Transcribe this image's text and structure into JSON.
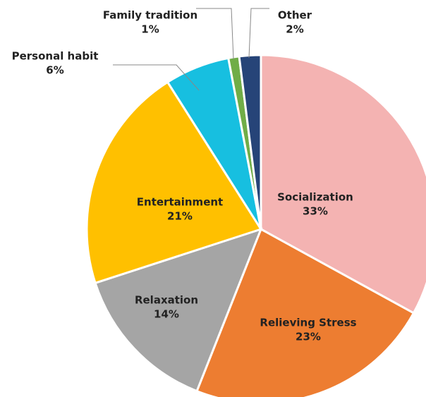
{
  "chart_data": {
    "type": "pie",
    "categories": [
      "Socialization",
      "Relieving Stress",
      "Relaxation",
      "Entertainment",
      "Personal habit",
      "Family tradition",
      "Other"
    ],
    "values": [
      33,
      23,
      14,
      21,
      6,
      1,
      2
    ],
    "value_labels": [
      "33%",
      "23%",
      "14%",
      "21%",
      "6%",
      "1%",
      "2%"
    ],
    "colors": [
      "#f4b3b2",
      "#ed7d31",
      "#a5a5a5",
      "#ffc000",
      "#17bfe0",
      "#70ad47",
      "#264478"
    ]
  }
}
